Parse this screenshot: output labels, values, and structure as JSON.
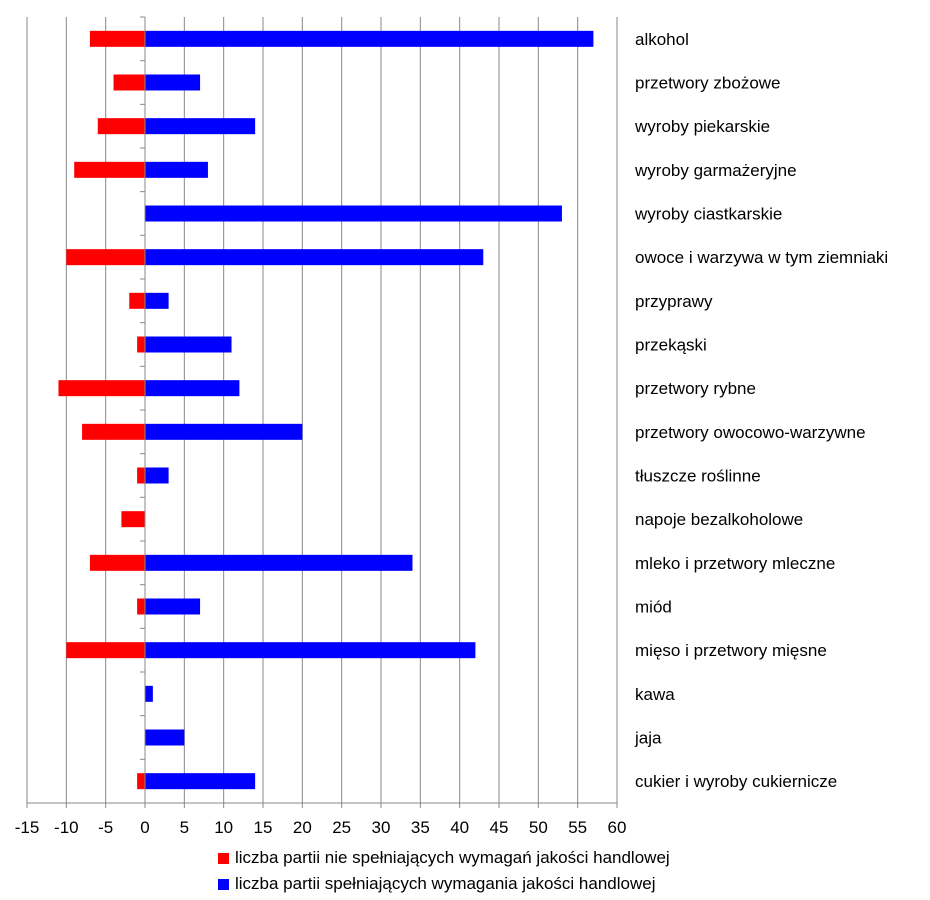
{
  "chart_data": {
    "type": "bar",
    "orientation": "horizontal",
    "categories": [
      "alkohol",
      "przetwory zbożowe",
      "wyroby piekarskie",
      "wyroby garmażeryjne",
      "wyroby ciastkarskie",
      "owoce i warzywa  w tym ziemniaki",
      "przyprawy",
      "przekąski",
      "przetwory rybne",
      "przetwory owocowo-warzywne",
      "tłuszcze roślinne",
      "napoje bezalkoholowe",
      "mleko i przetwory mleczne",
      "miód",
      "mięso  i przetwory mięsne",
      "kawa",
      "jaja",
      "cukier i wyroby cukiernicze"
    ],
    "series": [
      {
        "name": "liczba partii nie spełniających wymagań jakości handlowej",
        "color": "#ff0000",
        "values": [
          -7,
          -4,
          -6,
          -9,
          0,
          -10,
          -2,
          -1,
          -11,
          -8,
          -1,
          -3,
          -7,
          -1,
          -10,
          0,
          0,
          -1
        ]
      },
      {
        "name": "liczba partii spełniających wymagania jakości handlowej",
        "color": "#0000ff",
        "values": [
          57,
          7,
          14,
          8,
          53,
          43,
          3,
          11,
          12,
          20,
          3,
          0,
          34,
          7,
          42,
          1,
          5,
          14
        ]
      }
    ],
    "xlim": [
      -15,
      60
    ],
    "xticks": [
      "-15",
      "-10",
      "-5",
      "0",
      "5",
      "10",
      "15",
      "20",
      "25",
      "30",
      "35",
      "40",
      "45",
      "50",
      "55",
      "60"
    ],
    "xtick_step": 5,
    "grid": "vertical",
    "legend_position": "bottom"
  }
}
